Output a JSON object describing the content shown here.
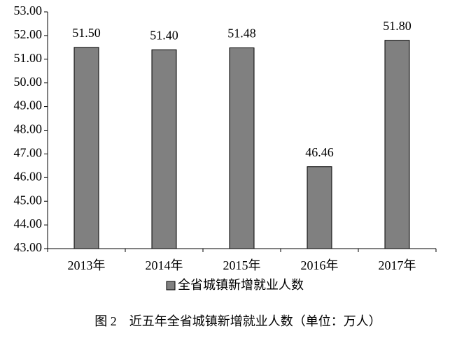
{
  "chart_data": {
    "type": "bar",
    "categories": [
      "2013年",
      "2014年",
      "2015年",
      "2016年",
      "2017年"
    ],
    "series": [
      {
        "name": "全省城镇新增就业人数",
        "color": "#808080",
        "values": [
          51.5,
          51.4,
          51.48,
          46.46,
          51.8
        ],
        "value_labels": [
          "51.50",
          "51.40",
          "51.48",
          "46.46",
          "51.80"
        ]
      }
    ],
    "ylim": [
      43,
      53
    ],
    "yticks": [
      {
        "value": 43,
        "label": "43.00"
      },
      {
        "value": 44,
        "label": "44.00"
      },
      {
        "value": 45,
        "label": "45.00"
      },
      {
        "value": 46,
        "label": "46.00"
      },
      {
        "value": 47,
        "label": "47.00"
      },
      {
        "value": 48,
        "label": "48.00"
      },
      {
        "value": 49,
        "label": "49.00"
      },
      {
        "value": 50,
        "label": "50.00"
      },
      {
        "value": 51,
        "label": "51.00"
      },
      {
        "value": 52,
        "label": "52.00"
      },
      {
        "value": 53,
        "label": "53.00"
      }
    ],
    "grid": false,
    "caption": "图 2　近五年全省城镇新增就业人数（单位：万人）"
  }
}
